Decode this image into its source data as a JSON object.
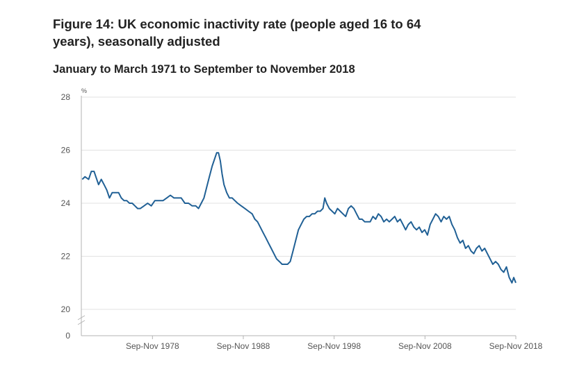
{
  "header": {
    "title": "Figure 14: UK economic inactivity rate (people aged 16 to 64 years), seasonally adjusted",
    "subtitle": "January to March 1971 to September to November 2018"
  },
  "colors": {
    "line": "#206095",
    "grid": "#e2e2e2",
    "axis": "#b3b3b3"
  },
  "chart_data": {
    "type": "line",
    "title": "Figure 14: UK economic inactivity rate (people aged 16 to 64 years), seasonally adjusted",
    "subtitle": "January to March 1971 to September to November 2018",
    "ylabel": "%",
    "ylim": [
      20,
      28
    ],
    "y_axis_break": true,
    "y_ticks": [
      20,
      22,
      24,
      26,
      28
    ],
    "y_ticks_extra": [
      0
    ],
    "x_range": [
      "Jan-Mar 1971",
      "Sep-Nov 2018"
    ],
    "x_tick_labels": [
      {
        "label": "Sep-Nov 1978",
        "year": 1978.83
      },
      {
        "label": "Sep-Nov 1988",
        "year": 1988.83
      },
      {
        "label": "Sep-Nov 1998",
        "year": 1998.83
      },
      {
        "label": "Sep-Nov 2008",
        "year": 2008.83
      },
      {
        "label": "Sep-Nov 2018",
        "year": 2018.83
      }
    ],
    "grid": true,
    "series": [
      {
        "values": [
          [
            1971.1,
            24.9
          ],
          [
            1971.4,
            25.0
          ],
          [
            1971.8,
            24.9
          ],
          [
            1972.1,
            25.2
          ],
          [
            1972.4,
            25.2
          ],
          [
            1972.7,
            24.9
          ],
          [
            1972.9,
            24.7
          ],
          [
            1973.2,
            24.9
          ],
          [
            1973.5,
            24.7
          ],
          [
            1973.8,
            24.5
          ],
          [
            1974.1,
            24.2
          ],
          [
            1974.4,
            24.4
          ],
          [
            1974.8,
            24.4
          ],
          [
            1975.1,
            24.4
          ],
          [
            1975.4,
            24.2
          ],
          [
            1975.7,
            24.1
          ],
          [
            1976.0,
            24.1
          ],
          [
            1976.3,
            24.0
          ],
          [
            1976.6,
            24.0
          ],
          [
            1976.9,
            23.9
          ],
          [
            1977.2,
            23.8
          ],
          [
            1977.5,
            23.8
          ],
          [
            1977.9,
            23.9
          ],
          [
            1978.3,
            24.0
          ],
          [
            1978.7,
            23.9
          ],
          [
            1979.1,
            24.1
          ],
          [
            1979.5,
            24.1
          ],
          [
            1980.0,
            24.1
          ],
          [
            1980.4,
            24.2
          ],
          [
            1980.8,
            24.3
          ],
          [
            1981.2,
            24.2
          ],
          [
            1981.6,
            24.2
          ],
          [
            1982.0,
            24.2
          ],
          [
            1982.4,
            24.0
          ],
          [
            1982.8,
            24.0
          ],
          [
            1983.2,
            23.9
          ],
          [
            1983.6,
            23.9
          ],
          [
            1983.9,
            23.8
          ],
          [
            1984.2,
            24.0
          ],
          [
            1984.5,
            24.2
          ],
          [
            1984.8,
            24.6
          ],
          [
            1985.1,
            25.0
          ],
          [
            1985.4,
            25.4
          ],
          [
            1985.7,
            25.7
          ],
          [
            1985.9,
            25.9
          ],
          [
            1986.1,
            25.9
          ],
          [
            1986.3,
            25.6
          ],
          [
            1986.5,
            25.1
          ],
          [
            1986.7,
            24.7
          ],
          [
            1987.0,
            24.4
          ],
          [
            1987.3,
            24.2
          ],
          [
            1987.6,
            24.2
          ],
          [
            1987.9,
            24.1
          ],
          [
            1988.2,
            24.0
          ],
          [
            1988.6,
            23.9
          ],
          [
            1989.0,
            23.8
          ],
          [
            1989.4,
            23.7
          ],
          [
            1989.8,
            23.6
          ],
          [
            1990.1,
            23.4
          ],
          [
            1990.4,
            23.3
          ],
          [
            1990.7,
            23.1
          ],
          [
            1991.0,
            22.9
          ],
          [
            1991.3,
            22.7
          ],
          [
            1991.6,
            22.5
          ],
          [
            1991.9,
            22.3
          ],
          [
            1992.2,
            22.1
          ],
          [
            1992.5,
            21.9
          ],
          [
            1992.8,
            21.8
          ],
          [
            1993.1,
            21.7
          ],
          [
            1993.4,
            21.7
          ],
          [
            1993.7,
            21.7
          ],
          [
            1994.0,
            21.8
          ],
          [
            1994.3,
            22.2
          ],
          [
            1994.6,
            22.6
          ],
          [
            1994.9,
            23.0
          ],
          [
            1995.2,
            23.2
          ],
          [
            1995.5,
            23.4
          ],
          [
            1995.8,
            23.5
          ],
          [
            1996.1,
            23.5
          ],
          [
            1996.4,
            23.6
          ],
          [
            1996.7,
            23.6
          ],
          [
            1997.0,
            23.7
          ],
          [
            1997.3,
            23.7
          ],
          [
            1997.6,
            23.8
          ],
          [
            1997.8,
            24.2
          ],
          [
            1998.0,
            24.0
          ],
          [
            1998.3,
            23.8
          ],
          [
            1998.6,
            23.7
          ],
          [
            1998.9,
            23.6
          ],
          [
            1999.2,
            23.8
          ],
          [
            1999.5,
            23.7
          ],
          [
            1999.8,
            23.6
          ],
          [
            2000.1,
            23.5
          ],
          [
            2000.4,
            23.8
          ],
          [
            2000.7,
            23.9
          ],
          [
            2001.0,
            23.8
          ],
          [
            2001.3,
            23.6
          ],
          [
            2001.6,
            23.4
          ],
          [
            2001.9,
            23.4
          ],
          [
            2002.2,
            23.3
          ],
          [
            2002.5,
            23.3
          ],
          [
            2002.8,
            23.3
          ],
          [
            2003.1,
            23.5
          ],
          [
            2003.4,
            23.4
          ],
          [
            2003.7,
            23.6
          ],
          [
            2004.0,
            23.5
          ],
          [
            2004.3,
            23.3
          ],
          [
            2004.6,
            23.4
          ],
          [
            2004.9,
            23.3
          ],
          [
            2005.2,
            23.4
          ],
          [
            2005.5,
            23.5
          ],
          [
            2005.8,
            23.3
          ],
          [
            2006.1,
            23.4
          ],
          [
            2006.4,
            23.2
          ],
          [
            2006.7,
            23.0
          ],
          [
            2007.0,
            23.2
          ],
          [
            2007.3,
            23.3
          ],
          [
            2007.6,
            23.1
          ],
          [
            2007.9,
            23.0
          ],
          [
            2008.2,
            23.1
          ],
          [
            2008.5,
            22.9
          ],
          [
            2008.8,
            23.0
          ],
          [
            2009.1,
            22.8
          ],
          [
            2009.4,
            23.2
          ],
          [
            2009.7,
            23.4
          ],
          [
            2010.0,
            23.6
          ],
          [
            2010.3,
            23.5
          ],
          [
            2010.6,
            23.3
          ],
          [
            2010.9,
            23.5
          ],
          [
            2011.2,
            23.4
          ],
          [
            2011.5,
            23.5
          ],
          [
            2011.8,
            23.2
          ],
          [
            2012.1,
            23.0
          ],
          [
            2012.4,
            22.7
          ],
          [
            2012.7,
            22.5
          ],
          [
            2013.0,
            22.6
          ],
          [
            2013.3,
            22.3
          ],
          [
            2013.6,
            22.4
          ],
          [
            2013.9,
            22.2
          ],
          [
            2014.2,
            22.1
          ],
          [
            2014.5,
            22.3
          ],
          [
            2014.8,
            22.4
          ],
          [
            2015.1,
            22.2
          ],
          [
            2015.4,
            22.3
          ],
          [
            2015.7,
            22.1
          ],
          [
            2016.0,
            21.9
          ],
          [
            2016.3,
            21.7
          ],
          [
            2016.6,
            21.8
          ],
          [
            2016.9,
            21.7
          ],
          [
            2017.2,
            21.5
          ],
          [
            2017.5,
            21.4
          ],
          [
            2017.8,
            21.6
          ],
          [
            2018.1,
            21.2
          ],
          [
            2018.4,
            21.0
          ],
          [
            2018.6,
            21.2
          ],
          [
            2018.83,
            21.0
          ]
        ]
      }
    ]
  }
}
